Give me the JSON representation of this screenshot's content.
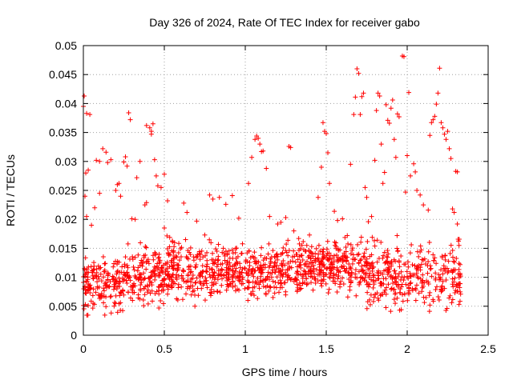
{
  "chart_data": {
    "type": "scatter",
    "title": "Day 326 of 2024, Rate Of TEC Index for receiver gabo",
    "xlabel": "GPS time / hours",
    "ylabel": "ROTI / TECUs",
    "xlim": [
      0,
      2.5
    ],
    "ylim": [
      0,
      0.05
    ],
    "x_ticks": [
      0,
      0.5,
      1,
      1.5,
      2,
      2.5
    ],
    "x_tick_labels": [
      "0",
      "0.5",
      "1",
      "1.5",
      "2",
      "2.5"
    ],
    "y_ticks": [
      0,
      0.005,
      0.01,
      0.015,
      0.02,
      0.025,
      0.03,
      0.035,
      0.04,
      0.045,
      0.05
    ],
    "y_tick_labels": [
      "0",
      "0.005",
      "0.01",
      "0.015",
      "0.02",
      "0.025",
      "0.03",
      "0.035",
      "0.04",
      "0.045",
      "0.05"
    ],
    "grid": true,
    "marker": "+",
    "color": "#ff0000",
    "series": [
      {
        "name": "ROTI",
        "points": [
          [
            0.0,
            0.0395
          ],
          [
            0.005,
            0.0413
          ],
          [
            0.02,
            0.0383
          ],
          [
            0.04,
            0.0381
          ],
          [
            0.01,
            0.024
          ],
          [
            0.015,
            0.028
          ],
          [
            0.03,
            0.0285
          ],
          [
            0.08,
            0.0302
          ],
          [
            0.1,
            0.03
          ],
          [
            0.12,
            0.0322
          ],
          [
            0.14,
            0.0316
          ],
          [
            0.15,
            0.0298
          ],
          [
            0.17,
            0.0303
          ],
          [
            0.1,
            0.0245
          ],
          [
            0.07,
            0.022
          ],
          [
            0.05,
            0.019
          ],
          [
            0.02,
            0.0205
          ],
          [
            0.2,
            0.025
          ],
          [
            0.21,
            0.026
          ],
          [
            0.22,
            0.0262
          ],
          [
            0.23,
            0.024
          ],
          [
            0.25,
            0.0299
          ],
          [
            0.26,
            0.0308
          ],
          [
            0.28,
            0.0384
          ],
          [
            0.29,
            0.0372
          ],
          [
            0.27,
            0.0292
          ],
          [
            0.3,
            0.0201
          ],
          [
            0.32,
            0.02
          ],
          [
            0.33,
            0.0272
          ],
          [
            0.35,
            0.03
          ],
          [
            0.38,
            0.0225
          ],
          [
            0.39,
            0.0229
          ],
          [
            0.39,
            0.0362
          ],
          [
            0.41,
            0.0358
          ],
          [
            0.42,
            0.0352
          ],
          [
            0.42,
            0.0347
          ],
          [
            0.43,
            0.0365
          ],
          [
            0.44,
            0.0303
          ],
          [
            0.45,
            0.0275
          ],
          [
            0.46,
            0.0258
          ],
          [
            0.48,
            0.0255
          ],
          [
            0.5,
            0.0278
          ],
          [
            0.5,
            0.0185
          ],
          [
            0.52,
            0.0232
          ],
          [
            0.56,
            0.0153
          ],
          [
            0.62,
            0.0228
          ],
          [
            0.64,
            0.0212
          ],
          [
            0.7,
            0.0197
          ],
          [
            0.75,
            0.0173
          ],
          [
            0.78,
            0.0242
          ],
          [
            0.8,
            0.0235
          ],
          [
            0.84,
            0.0238
          ],
          [
            0.88,
            0.0226
          ],
          [
            0.92,
            0.0241
          ],
          [
            0.96,
            0.0202
          ],
          [
            1.02,
            0.0262
          ],
          [
            1.04,
            0.0307
          ],
          [
            1.06,
            0.0338
          ],
          [
            1.07,
            0.0344
          ],
          [
            1.08,
            0.034
          ],
          [
            1.09,
            0.033
          ],
          [
            1.1,
            0.0317
          ],
          [
            1.11,
            0.0318
          ],
          [
            1.13,
            0.0288
          ],
          [
            1.15,
            0.0205
          ],
          [
            1.2,
            0.0192
          ],
          [
            1.22,
            0.0195
          ],
          [
            1.25,
            0.0203
          ],
          [
            1.27,
            0.0326
          ],
          [
            1.28,
            0.0324
          ],
          [
            1.3,
            0.018
          ],
          [
            1.33,
            0.0167
          ],
          [
            1.35,
            0.0155
          ],
          [
            1.38,
            0.0155
          ],
          [
            1.41,
            0.0153
          ],
          [
            1.45,
            0.0238
          ],
          [
            1.47,
            0.029
          ],
          [
            1.48,
            0.0367
          ],
          [
            1.49,
            0.0352
          ],
          [
            1.5,
            0.0348
          ],
          [
            1.51,
            0.0315
          ],
          [
            1.52,
            0.0262
          ],
          [
            1.55,
            0.0214
          ],
          [
            1.57,
            0.0198
          ],
          [
            1.6,
            0.0201
          ],
          [
            1.63,
            0.0172
          ],
          [
            1.65,
            0.0295
          ],
          [
            1.67,
            0.0381
          ],
          [
            1.68,
            0.0411
          ],
          [
            1.69,
            0.046
          ],
          [
            1.7,
            0.0452
          ],
          [
            1.71,
            0.0381
          ],
          [
            1.72,
            0.0412
          ],
          [
            1.73,
            0.0418
          ],
          [
            1.74,
            0.0255
          ],
          [
            1.75,
            0.0238
          ],
          [
            1.76,
            0.0196
          ],
          [
            1.78,
            0.0205
          ],
          [
            1.8,
            0.0302
          ],
          [
            1.81,
            0.0388
          ],
          [
            1.82,
            0.0418
          ],
          [
            1.83,
            0.0413
          ],
          [
            1.84,
            0.033
          ],
          [
            1.85,
            0.0262
          ],
          [
            1.86,
            0.0281
          ],
          [
            1.87,
            0.0398
          ],
          [
            1.88,
            0.0371
          ],
          [
            1.89,
            0.0366
          ],
          [
            1.9,
            0.0392
          ],
          [
            1.91,
            0.0406
          ],
          [
            1.92,
            0.0338
          ],
          [
            1.93,
            0.0307
          ],
          [
            1.94,
            0.0382
          ],
          [
            1.95,
            0.0377
          ],
          [
            1.97,
            0.0482
          ],
          [
            1.98,
            0.0481
          ],
          [
            1.99,
            0.0247
          ],
          [
            2.0,
            0.031
          ],
          [
            2.01,
            0.0419
          ],
          [
            2.02,
            0.0275
          ],
          [
            2.04,
            0.0296
          ],
          [
            2.05,
            0.0282
          ],
          [
            2.06,
            0.025
          ],
          [
            2.08,
            0.0242
          ],
          [
            2.1,
            0.0225
          ],
          [
            2.13,
            0.0216
          ],
          [
            2.14,
            0.0345
          ],
          [
            2.15,
            0.0367
          ],
          [
            2.16,
            0.0372
          ],
          [
            2.17,
            0.0378
          ],
          [
            2.18,
            0.0399
          ],
          [
            2.19,
            0.0418
          ],
          [
            2.2,
            0.0461
          ],
          [
            2.21,
            0.0367
          ],
          [
            2.22,
            0.0358
          ],
          [
            2.23,
            0.0347
          ],
          [
            2.24,
            0.0338
          ],
          [
            2.25,
            0.0352
          ],
          [
            2.26,
            0.0322
          ],
          [
            2.27,
            0.0305
          ],
          [
            2.28,
            0.0218
          ],
          [
            2.29,
            0.0212
          ],
          [
            2.3,
            0.0283
          ],
          [
            2.31,
            0.0282
          ],
          [
            2.31,
            0.0192
          ],
          [
            2.32,
            0.0155
          ],
          [
            2.32,
            0.0053
          ],
          [
            2.33,
            0.0071
          ],
          [
            2.33,
            0.0102
          ],
          [
            2.32,
            0.0124
          ]
        ]
      }
    ],
    "dense_band": {
      "note": "Additional dense cloud of + markers between 0.004 and 0.016 TECUs across 0 to 2.33 h",
      "x_range": [
        0.0,
        2.33
      ],
      "segments": [
        {
          "x": [
            0.0,
            0.25
          ],
          "y": [
            0.0035,
            0.0145
          ]
        },
        {
          "x": [
            0.25,
            0.5
          ],
          "y": [
            0.005,
            0.0155
          ]
        },
        {
          "x": [
            0.5,
            0.75
          ],
          "y": [
            0.0055,
            0.0165
          ]
        },
        {
          "x": [
            0.75,
            1.0
          ],
          "y": [
            0.006,
            0.016
          ]
        },
        {
          "x": [
            1.0,
            1.25
          ],
          "y": [
            0.0065,
            0.0155
          ]
        },
        {
          "x": [
            1.25,
            1.5
          ],
          "y": [
            0.007,
            0.0165
          ]
        },
        {
          "x": [
            1.5,
            1.75
          ],
          "y": [
            0.007,
            0.017
          ]
        },
        {
          "x": [
            1.75,
            2.0
          ],
          "y": [
            0.004,
            0.0165
          ]
        },
        {
          "x": [
            2.0,
            2.33
          ],
          "y": [
            0.0045,
            0.0165
          ]
        }
      ],
      "count": 1500
    }
  }
}
